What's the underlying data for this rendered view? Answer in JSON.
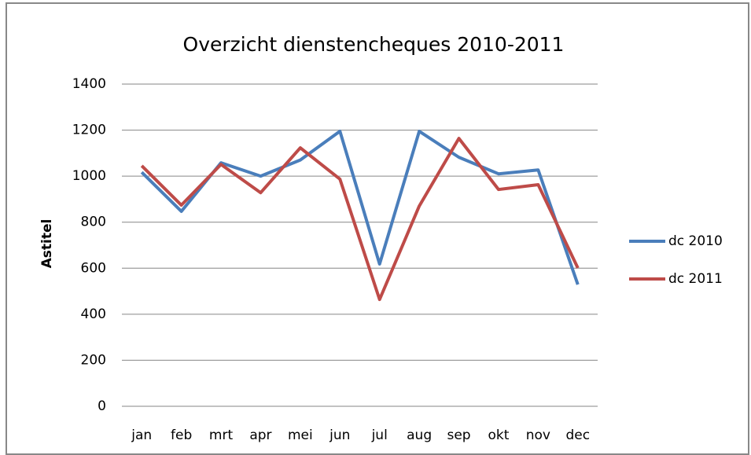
{
  "chart_data": {
    "type": "line",
    "title": "Overzicht dienstencheques 2010-2011",
    "y_label": "Astitel",
    "categories": [
      "jan",
      "feb",
      "mrt",
      "apr",
      "mei",
      "jun",
      "jul",
      "aug",
      "sep",
      "okt",
      "nov",
      "dec"
    ],
    "series": [
      {
        "name": "dc 2010",
        "color": "#4a7ebb",
        "values": [
          1017,
          847,
          1058,
          1000,
          1070,
          1195,
          618,
          1195,
          1082,
          1010,
          1027,
          529
        ]
      },
      {
        "name": "dc 2011",
        "color": "#be4b48",
        "values": [
          1045,
          874,
          1051,
          928,
          1123,
          987,
          464,
          870,
          1164,
          942,
          963,
          601
        ]
      }
    ],
    "ylim": [
      0,
      1400
    ],
    "yticks": [
      0,
      200,
      400,
      600,
      800,
      1000,
      1200,
      1400
    ],
    "grid": true,
    "legend": "right"
  }
}
